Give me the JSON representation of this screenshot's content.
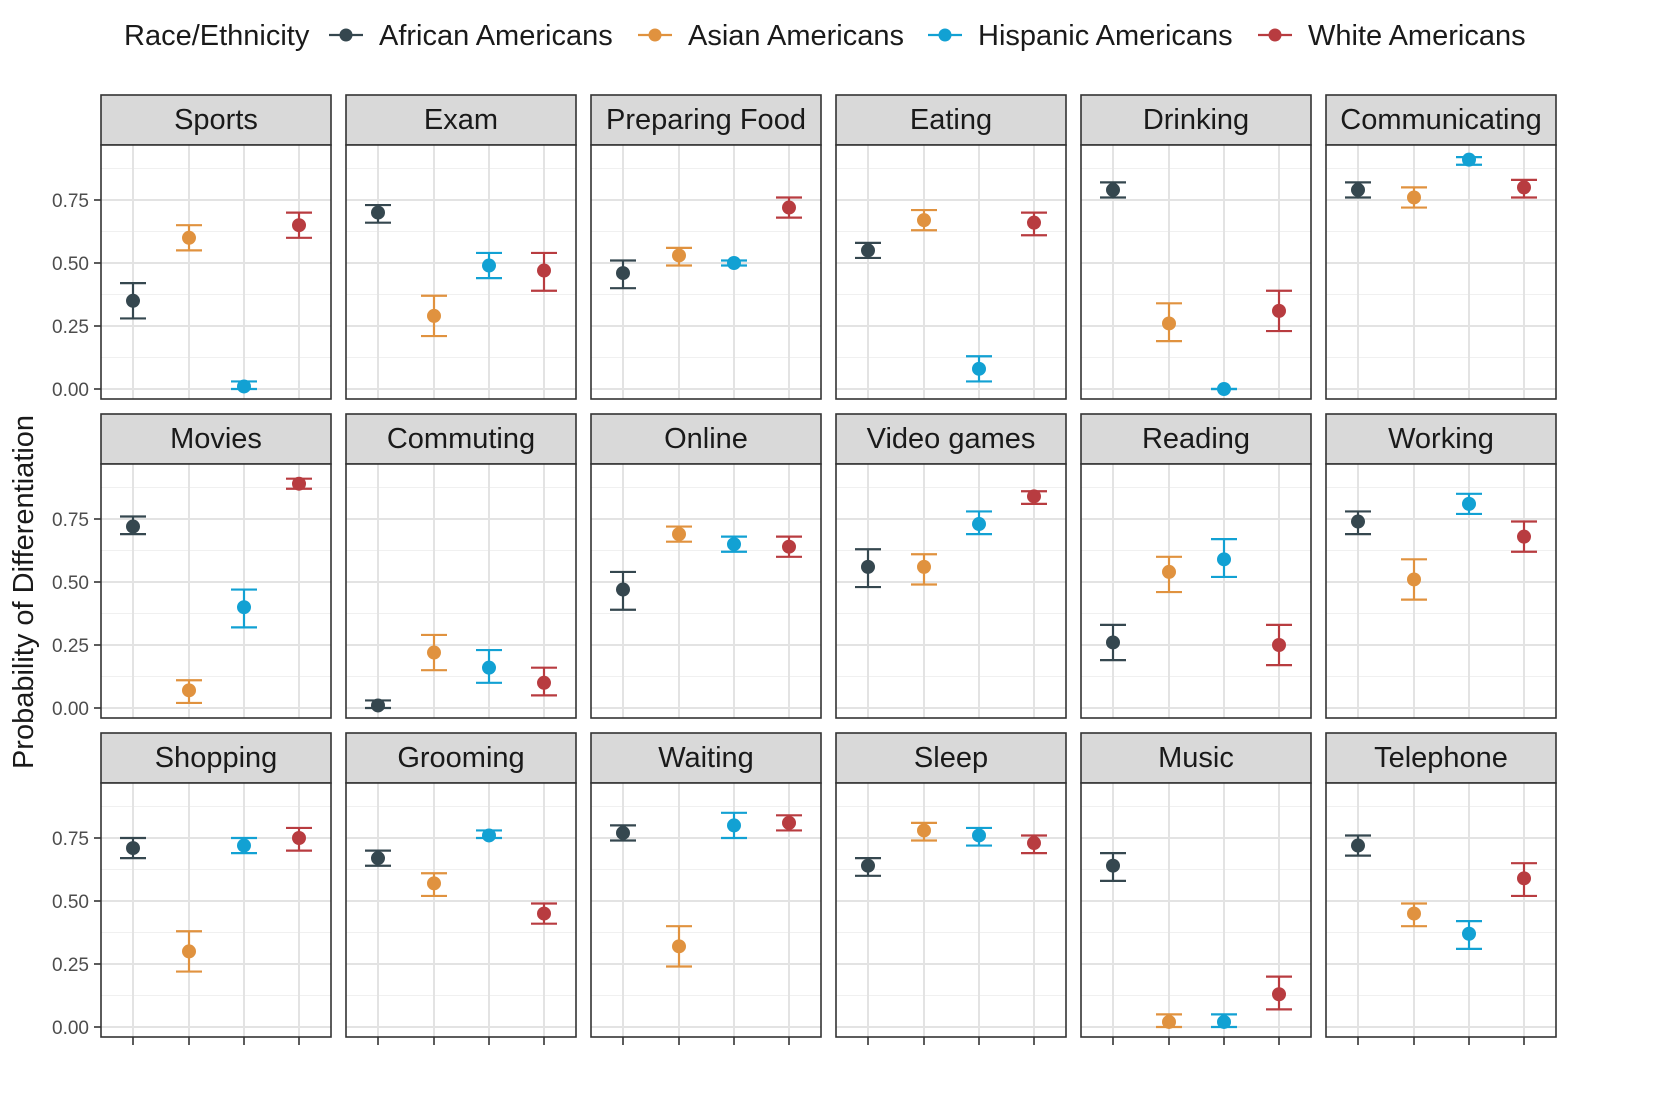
{
  "chart_data": {
    "type": "scatter",
    "ylabel": "Probability of Differentiation",
    "xlabel": "",
    "ylim": [
      0,
      1
    ],
    "y_ticks": [
      "0.00",
      "0.25",
      "0.50",
      "0.75"
    ],
    "y_tick_values": [
      0,
      0.25,
      0.5,
      0.75
    ],
    "grid": true,
    "legend": {
      "title": "Race/Ethnicity",
      "position": "top",
      "entries": [
        "African Americans",
        "Asian Americans",
        "Hispanic Americans",
        "White Americans"
      ]
    },
    "series": [
      {
        "name": "African Americans",
        "color": "#35474f"
      },
      {
        "name": "Asian Americans",
        "color": "#e0923f"
      },
      {
        "name": "Hispanic Americans",
        "color": "#12a1d3"
      },
      {
        "name": "White Americans",
        "color": "#b83c40"
      }
    ],
    "panels": [
      {
        "title": "Sports",
        "points": [
          {
            "y": 0.35,
            "lo": 0.28,
            "hi": 0.42
          },
          {
            "y": 0.6,
            "lo": 0.55,
            "hi": 0.65
          },
          {
            "y": 0.01,
            "lo": 0.0,
            "hi": 0.03
          },
          {
            "y": 0.65,
            "lo": 0.6,
            "hi": 0.7
          }
        ]
      },
      {
        "title": "Exam",
        "points": [
          {
            "y": 0.7,
            "lo": 0.66,
            "hi": 0.73
          },
          {
            "y": 0.29,
            "lo": 0.21,
            "hi": 0.37
          },
          {
            "y": 0.49,
            "lo": 0.44,
            "hi": 0.54
          },
          {
            "y": 0.47,
            "lo": 0.39,
            "hi": 0.54
          }
        ]
      },
      {
        "title": "Preparing Food",
        "points": [
          {
            "y": 0.46,
            "lo": 0.4,
            "hi": 0.51
          },
          {
            "y": 0.53,
            "lo": 0.49,
            "hi": 0.56
          },
          {
            "y": 0.5,
            "lo": 0.49,
            "hi": 0.51
          },
          {
            "y": 0.72,
            "lo": 0.68,
            "hi": 0.76
          }
        ]
      },
      {
        "title": "Eating",
        "points": [
          {
            "y": 0.55,
            "lo": 0.52,
            "hi": 0.58
          },
          {
            "y": 0.67,
            "lo": 0.63,
            "hi": 0.71
          },
          {
            "y": 0.08,
            "lo": 0.03,
            "hi": 0.13
          },
          {
            "y": 0.66,
            "lo": 0.61,
            "hi": 0.7
          }
        ]
      },
      {
        "title": "Drinking",
        "points": [
          {
            "y": 0.79,
            "lo": 0.76,
            "hi": 0.82
          },
          {
            "y": 0.26,
            "lo": 0.19,
            "hi": 0.34
          },
          {
            "y": 0.0,
            "lo": 0.0,
            "hi": 0.0
          },
          {
            "y": 0.31,
            "lo": 0.23,
            "hi": 0.39
          }
        ]
      },
      {
        "title": "Communicating",
        "points": [
          {
            "y": 0.79,
            "lo": 0.76,
            "hi": 0.82
          },
          {
            "y": 0.76,
            "lo": 0.72,
            "hi": 0.8
          },
          {
            "y": 0.91,
            "lo": 0.89,
            "hi": 0.92
          },
          {
            "y": 0.8,
            "lo": 0.76,
            "hi": 0.83
          }
        ]
      },
      {
        "title": "Movies",
        "points": [
          {
            "y": 0.72,
            "lo": 0.69,
            "hi": 0.76
          },
          {
            "y": 0.07,
            "lo": 0.02,
            "hi": 0.11
          },
          {
            "y": 0.4,
            "lo": 0.32,
            "hi": 0.47
          },
          {
            "y": 0.89,
            "lo": 0.87,
            "hi": 0.91
          }
        ]
      },
      {
        "title": "Commuting",
        "points": [
          {
            "y": 0.01,
            "lo": 0.0,
            "hi": 0.03
          },
          {
            "y": 0.22,
            "lo": 0.15,
            "hi": 0.29
          },
          {
            "y": 0.16,
            "lo": 0.1,
            "hi": 0.23
          },
          {
            "y": 0.1,
            "lo": 0.05,
            "hi": 0.16
          }
        ]
      },
      {
        "title": "Online",
        "points": [
          {
            "y": 0.47,
            "lo": 0.39,
            "hi": 0.54
          },
          {
            "y": 0.69,
            "lo": 0.66,
            "hi": 0.72
          },
          {
            "y": 0.65,
            "lo": 0.62,
            "hi": 0.68
          },
          {
            "y": 0.64,
            "lo": 0.6,
            "hi": 0.68
          }
        ]
      },
      {
        "title": "Video games",
        "points": [
          {
            "y": 0.56,
            "lo": 0.48,
            "hi": 0.63
          },
          {
            "y": 0.56,
            "lo": 0.49,
            "hi": 0.61
          },
          {
            "y": 0.73,
            "lo": 0.69,
            "hi": 0.78
          },
          {
            "y": 0.84,
            "lo": 0.81,
            "hi": 0.86
          }
        ]
      },
      {
        "title": "Reading",
        "points": [
          {
            "y": 0.26,
            "lo": 0.19,
            "hi": 0.33
          },
          {
            "y": 0.54,
            "lo": 0.46,
            "hi": 0.6
          },
          {
            "y": 0.59,
            "lo": 0.52,
            "hi": 0.67
          },
          {
            "y": 0.25,
            "lo": 0.17,
            "hi": 0.33
          }
        ]
      },
      {
        "title": "Working",
        "points": [
          {
            "y": 0.74,
            "lo": 0.69,
            "hi": 0.78
          },
          {
            "y": 0.51,
            "lo": 0.43,
            "hi": 0.59
          },
          {
            "y": 0.81,
            "lo": 0.77,
            "hi": 0.85
          },
          {
            "y": 0.68,
            "lo": 0.62,
            "hi": 0.74
          }
        ]
      },
      {
        "title": "Shopping",
        "points": [
          {
            "y": 0.71,
            "lo": 0.67,
            "hi": 0.75
          },
          {
            "y": 0.3,
            "lo": 0.22,
            "hi": 0.38
          },
          {
            "y": 0.72,
            "lo": 0.69,
            "hi": 0.75
          },
          {
            "y": 0.75,
            "lo": 0.7,
            "hi": 0.79
          }
        ]
      },
      {
        "title": "Grooming",
        "points": [
          {
            "y": 0.67,
            "lo": 0.64,
            "hi": 0.7
          },
          {
            "y": 0.57,
            "lo": 0.52,
            "hi": 0.61
          },
          {
            "y": 0.76,
            "lo": 0.75,
            "hi": 0.78
          },
          {
            "y": 0.45,
            "lo": 0.41,
            "hi": 0.49
          }
        ]
      },
      {
        "title": "Waiting",
        "points": [
          {
            "y": 0.77,
            "lo": 0.74,
            "hi": 0.8
          },
          {
            "y": 0.32,
            "lo": 0.24,
            "hi": 0.4
          },
          {
            "y": 0.8,
            "lo": 0.75,
            "hi": 0.85
          },
          {
            "y": 0.81,
            "lo": 0.78,
            "hi": 0.84
          }
        ]
      },
      {
        "title": "Sleep",
        "points": [
          {
            "y": 0.64,
            "lo": 0.6,
            "hi": 0.67
          },
          {
            "y": 0.78,
            "lo": 0.74,
            "hi": 0.81
          },
          {
            "y": 0.76,
            "lo": 0.72,
            "hi": 0.79
          },
          {
            "y": 0.73,
            "lo": 0.69,
            "hi": 0.76
          }
        ]
      },
      {
        "title": "Music",
        "points": [
          {
            "y": 0.64,
            "lo": 0.58,
            "hi": 0.69
          },
          {
            "y": 0.02,
            "lo": 0.0,
            "hi": 0.05
          },
          {
            "y": 0.02,
            "lo": 0.0,
            "hi": 0.05
          },
          {
            "y": 0.13,
            "lo": 0.07,
            "hi": 0.2
          }
        ]
      },
      {
        "title": "Telephone",
        "points": [
          {
            "y": 0.72,
            "lo": 0.68,
            "hi": 0.76
          },
          {
            "y": 0.45,
            "lo": 0.4,
            "hi": 0.49
          },
          {
            "y": 0.37,
            "lo": 0.31,
            "hi": 0.42
          },
          {
            "y": 0.59,
            "lo": 0.52,
            "hi": 0.65
          }
        ]
      }
    ]
  }
}
